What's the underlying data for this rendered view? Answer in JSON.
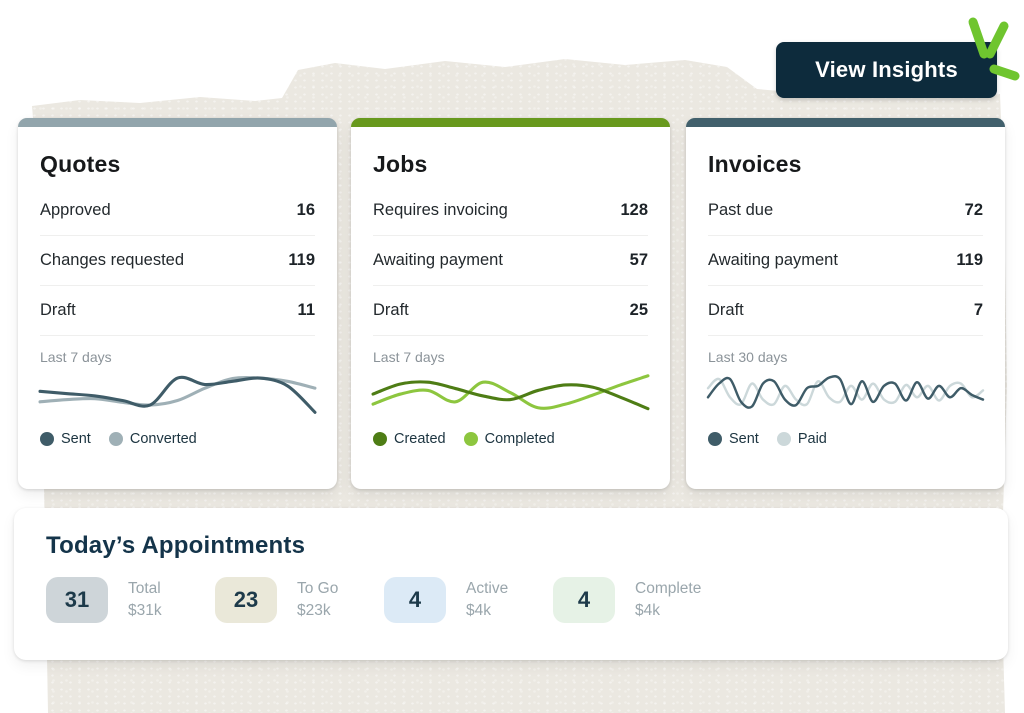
{
  "colors": {
    "button_bg": "#0d2b3c",
    "scribble_green": "#6fc52f",
    "paper": "#ebe8e1"
  },
  "header": {
    "view_insights_label": "View Insights"
  },
  "cards": [
    {
      "id": "quotes",
      "title": "Quotes",
      "accent_color": "#92a5ac",
      "rows": [
        {
          "label": "Approved",
          "value": "16"
        },
        {
          "label": "Changes requested",
          "value": "119"
        },
        {
          "label": "Draft",
          "value": "11"
        }
      ],
      "chart": {
        "period_label": "Last 7 days",
        "stroke_width": 3,
        "series": [
          {
            "name": "Sent",
            "color": "#3f5c68",
            "points": [
              0.42,
              0.47,
              0.52,
              0.62,
              0.72,
              0.13,
              0.27,
              0.2,
              0.13,
              0.3,
              0.88
            ]
          },
          {
            "name": "Converted",
            "color": "#9fb0b6",
            "points": [
              0.65,
              0.6,
              0.58,
              0.66,
              0.72,
              0.62,
              0.35,
              0.14,
              0.13,
              0.2,
              0.35
            ]
          }
        ]
      }
    },
    {
      "id": "jobs",
      "title": "Jobs",
      "accent_color": "#68991d",
      "rows": [
        {
          "label": "Requires invoicing",
          "value": "128"
        },
        {
          "label": "Awaiting payment",
          "value": "57"
        },
        {
          "label": "Draft",
          "value": "25"
        }
      ],
      "chart": {
        "period_label": "Last 7 days",
        "stroke_width": 3,
        "series": [
          {
            "name": "Created",
            "color": "#4e7d15",
            "points": [
              0.48,
              0.26,
              0.22,
              0.36,
              0.52,
              0.6,
              0.4,
              0.28,
              0.33,
              0.55,
              0.8
            ]
          },
          {
            "name": "Completed",
            "color": "#8dc63f",
            "points": [
              0.7,
              0.48,
              0.4,
              0.65,
              0.22,
              0.45,
              0.78,
              0.7,
              0.5,
              0.28,
              0.08
            ]
          }
        ]
      }
    },
    {
      "id": "invoices",
      "title": "Invoices",
      "accent_color": "#41606c",
      "rows": [
        {
          "label": "Past due",
          "value": "72"
        },
        {
          "label": "Awaiting payment",
          "value": "119"
        },
        {
          "label": "Draft",
          "value": "7"
        }
      ],
      "chart": {
        "period_label": "Last 30 days",
        "stroke_width": 2.4,
        "series": [
          {
            "name": "Sent",
            "color": "#3f5c68",
            "points": [
              0.55,
              0.25,
              0.15,
              0.65,
              0.75,
              0.25,
              0.2,
              0.6,
              0.72,
              0.35,
              0.3,
              0.12,
              0.15,
              0.7,
              0.2,
              0.65,
              0.3,
              0.25,
              0.62,
              0.22,
              0.58,
              0.3,
              0.55,
              0.35,
              0.5,
              0.6
            ]
          },
          {
            "name": "Paid",
            "color": "#ccd8da",
            "points": [
              0.35,
              0.15,
              0.55,
              0.7,
              0.25,
              0.6,
              0.7,
              0.3,
              0.6,
              0.7,
              0.2,
              0.55,
              0.65,
              0.3,
              0.6,
              0.25,
              0.6,
              0.65,
              0.28,
              0.55,
              0.3,
              0.62,
              0.3,
              0.25,
              0.55,
              0.4
            ]
          }
        ]
      }
    }
  ],
  "appointments": {
    "title": "Today’s Appointments",
    "stats": [
      {
        "count": "31",
        "label": "Total",
        "amount": "$31k",
        "badge_color": "#ced5d9"
      },
      {
        "count": "23",
        "label": "To Go",
        "amount": "$23k",
        "badge_color": "#eae8d9"
      },
      {
        "count": "4",
        "label": "Active",
        "amount": "$4k",
        "badge_color": "#dceaf6"
      },
      {
        "count": "4",
        "label": "Complete",
        "amount": "$4k",
        "badge_color": "#e6f2e6"
      }
    ]
  }
}
